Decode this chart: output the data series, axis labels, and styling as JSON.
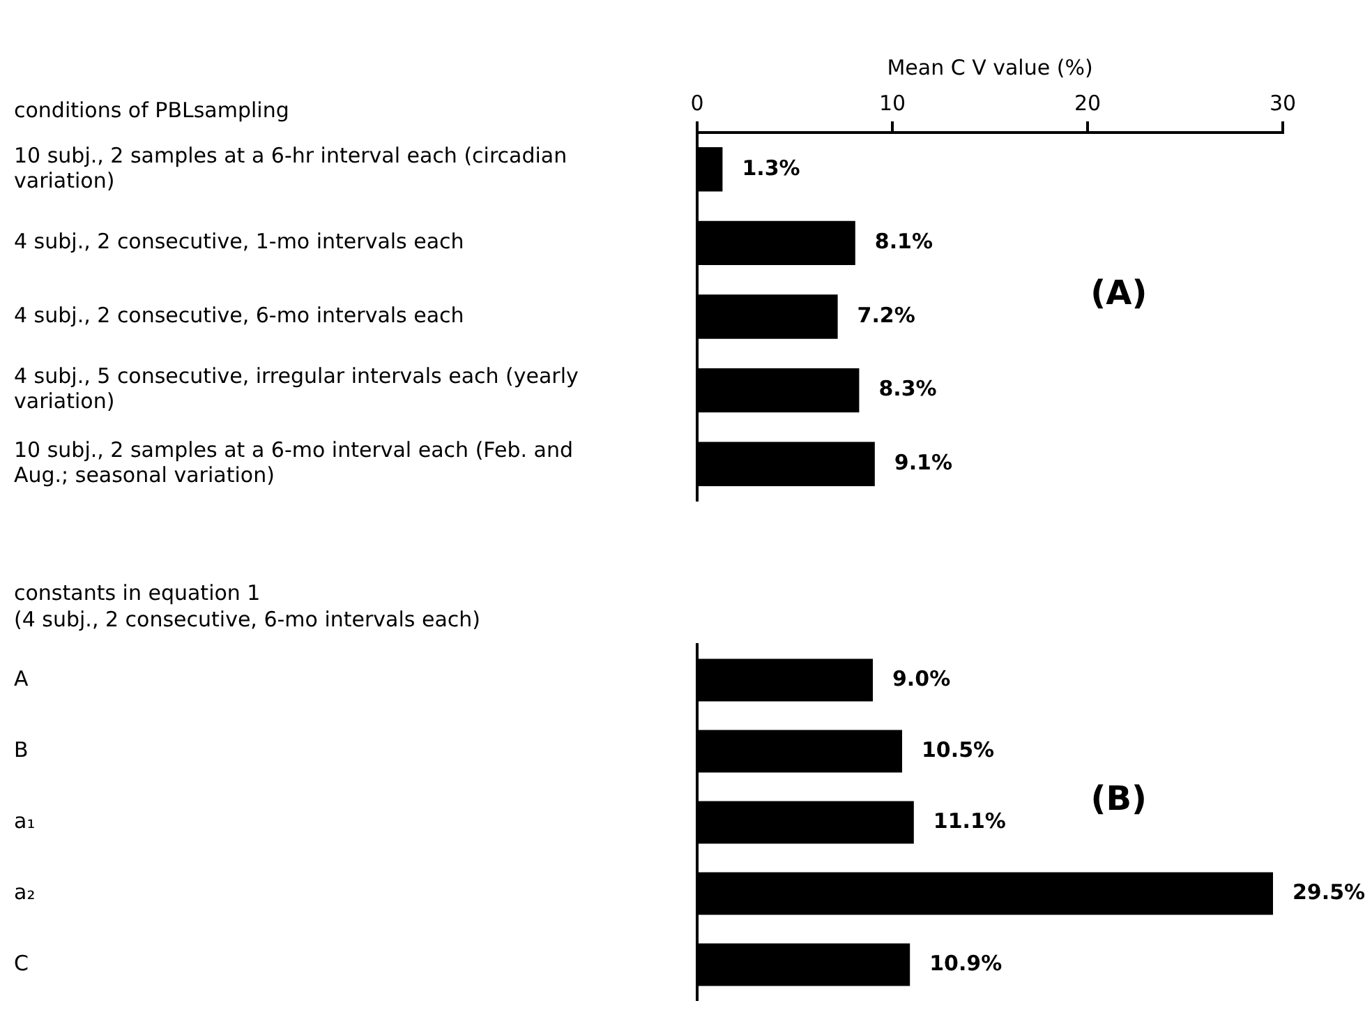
{
  "chart_data": [
    {
      "type": "bar",
      "orientation": "horizontal",
      "title": "conditions of PBLsampling",
      "xlabel": "Mean C V value (%)",
      "xlim": [
        0,
        30
      ],
      "xticks": [
        0,
        10,
        20,
        30
      ],
      "categories": [
        "10 subj., 2 samples at a 6-hr interval each (circadian variation)",
        "4 subj., 2 consecutive, 1-mo intervals each",
        "4 subj., 2 consecutive, 6-mo intervals each",
        "4 subj., 5 consecutive, irregular intervals each (yearly variation)",
        "10 subj., 2 samples at a 6-mo interval each (Feb. and Aug.; seasonal variation)"
      ],
      "values": [
        1.3,
        8.1,
        7.2,
        8.3,
        9.1
      ],
      "color": "#000000",
      "value_labels": [
        "1.3%",
        "8.1%",
        "7.2%",
        "8.3%",
        "9.1%"
      ],
      "annotations": [
        "(A)"
      ]
    },
    {
      "type": "bar",
      "orientation": "horizontal",
      "title": "constants in equation 1",
      "subtitle": "(4 subj., 2 consecutive, 6-mo intervals each)",
      "tick_labels": "y",
      "categories": [
        "A",
        "B",
        "a₁",
        "a₂",
        "C"
      ],
      "values": [
        9.0,
        10.5,
        11.1,
        29.5,
        10.9
      ],
      "color": "#000000",
      "value_labels": [
        "9.0%",
        "10.5%",
        "11.1%",
        "29.5%",
        "10.9%"
      ],
      "annotations": [
        "(B)"
      ]
    }
  ]
}
